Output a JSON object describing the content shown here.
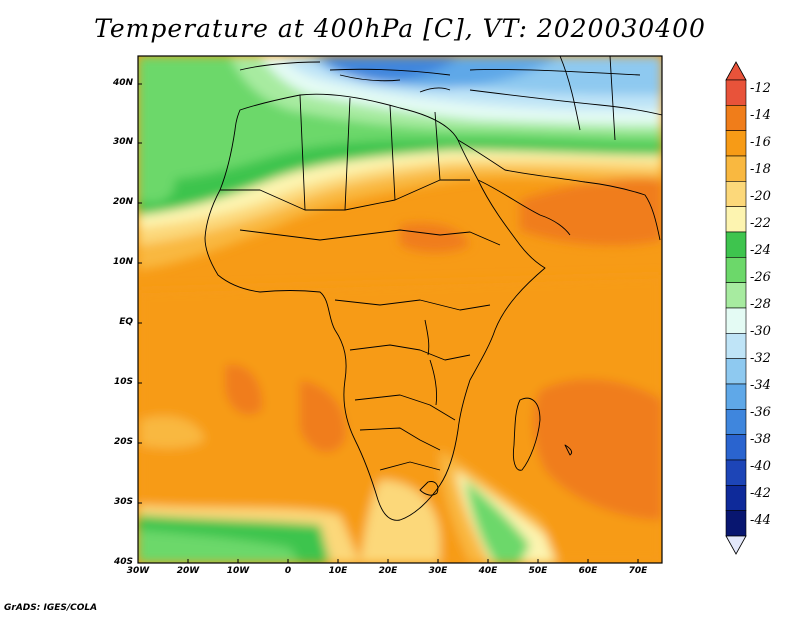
{
  "title": "Temperature at 400hPa [C], VT: 2020030400",
  "credit": "GrADS: IGES/COLA",
  "map": {
    "lon_range": [
      -30,
      75
    ],
    "lat_range": [
      -40,
      45
    ],
    "x_ticks": [
      "30W",
      "20W",
      "10W",
      "0",
      "10E",
      "20E",
      "30E",
      "40E",
      "50E",
      "60E",
      "70E"
    ],
    "y_ticks": [
      "40S",
      "30S",
      "20S",
      "10S",
      "EQ",
      "10N",
      "20N",
      "30N",
      "40N"
    ]
  },
  "colorbar": {
    "labels": [
      "-12",
      "-14",
      "-16",
      "-18",
      "-20",
      "-22",
      "-24",
      "-26",
      "-28",
      "-30",
      "-32",
      "-34",
      "-36",
      "-38",
      "-40",
      "-42",
      "-44"
    ],
    "colors": [
      "#e8533a",
      "#f07d1a",
      "#f79b16",
      "#f9b840",
      "#fcd87a",
      "#fdf4b0",
      "#3ec44e",
      "#6cd86a",
      "#a7eba0",
      "#e4fbf4",
      "#bfe4f7",
      "#8ec9f0",
      "#5fa8e8",
      "#3f86dd",
      "#2a64cf",
      "#1d45b7",
      "#0e2a9a",
      "#081670"
    ],
    "top_arrow_color": "#e8533a",
    "bottom_arrow_color": "#e3e8fb"
  }
}
